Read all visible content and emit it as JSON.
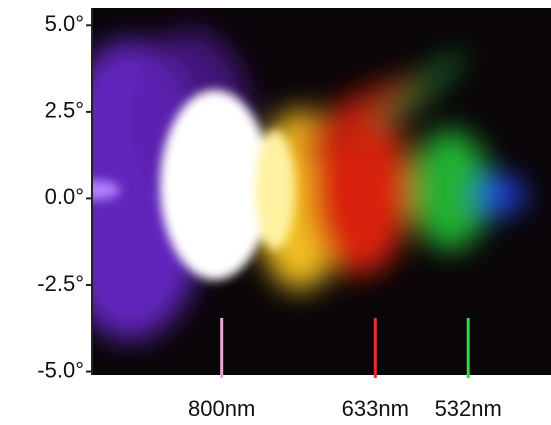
{
  "chart_data": {
    "type": "spectrum-image",
    "ylim": [
      -5.1,
      5.5
    ],
    "yticks": [
      {
        "value": 5,
        "label": "5.0°"
      },
      {
        "value": 2.5,
        "label": "2.5°"
      },
      {
        "value": 0,
        "label": "0.0°"
      },
      {
        "value": -2.5,
        "label": "-2.5°"
      },
      {
        "value": -5,
        "label": "-5.0°"
      }
    ],
    "xlim": [
      941,
      442
    ],
    "markers": [
      {
        "label": "800nm",
        "value": 800,
        "color": "#e8a8d8"
      },
      {
        "label": "633nm",
        "value": 633,
        "color": "#e83028"
      },
      {
        "label": "532nm",
        "value": 532,
        "color": "#38d838"
      }
    ]
  }
}
